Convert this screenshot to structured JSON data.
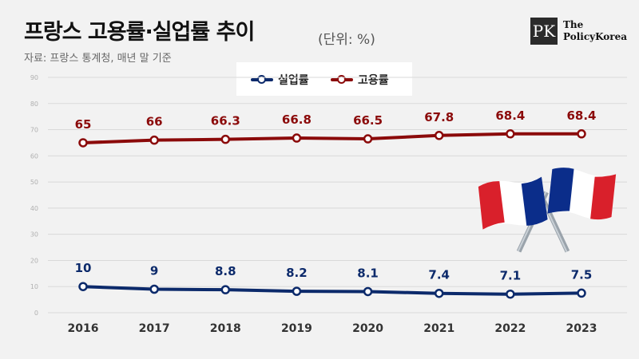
{
  "header": {
    "title": "프랑스 고용률·실업률 추이",
    "unit": "(단위: %)",
    "source": "자료: 프랑스 통계청, 매년 말 기준"
  },
  "logo": {
    "mark": "PK",
    "line1": "The",
    "line2": "PolicyKorea"
  },
  "colors": {
    "unemployment": "#0c2a6b",
    "employment": "#8b0a0a",
    "background": "#f2f2f2",
    "grid": "#d9d9d9"
  },
  "decoration": {
    "icon": "crossed-france-flags-icon"
  },
  "chart_data": {
    "type": "line",
    "categories": [
      "2016",
      "2017",
      "2018",
      "2019",
      "2020",
      "2021",
      "2022",
      "2023"
    ],
    "series": [
      {
        "name": "실업률",
        "values": [
          10,
          9,
          8.8,
          8.2,
          8.1,
          7.4,
          7.1,
          7.5
        ],
        "labels": [
          "10",
          "9",
          "8.8",
          "8.2",
          "8.1",
          "7.4",
          "7.1",
          "7.5"
        ]
      },
      {
        "name": "고용률",
        "values": [
          65,
          66,
          66.3,
          66.8,
          66.5,
          67.8,
          68.4,
          68.4
        ],
        "labels": [
          "65",
          "66",
          "66.3",
          "66.8",
          "66.5",
          "67.8",
          "68.4",
          "68.4"
        ]
      }
    ],
    "ylim": [
      0,
      90
    ],
    "yticks": [
      "0",
      "10",
      "20",
      "30",
      "40",
      "50",
      "60",
      "70",
      "80",
      "90"
    ],
    "grid": true,
    "legend": "top-center"
  }
}
